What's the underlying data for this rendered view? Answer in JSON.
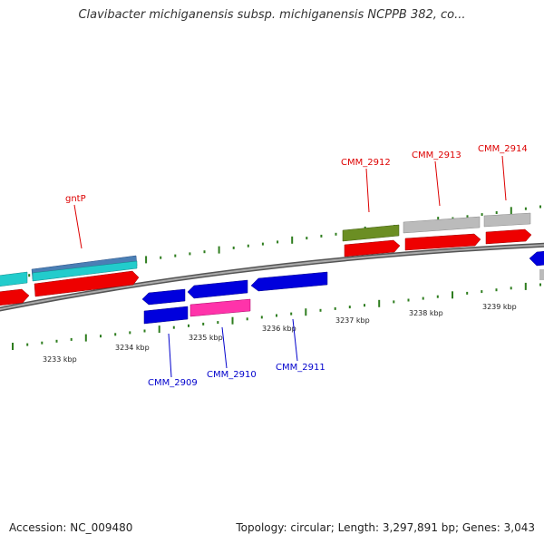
{
  "title": "Clavibacter michiganensis subsp. michiganensis NCPPB 382, co...",
  "footer": {
    "accession": "Accession: NC_009480",
    "topology": "Topology: circular; Length: 3,297,891 bp; Genes: 3,043"
  },
  "colors": {
    "backbone": "#777777",
    "tick": "#2e7d1e",
    "forward_label": "#dd0000",
    "reverse_label": "#0000cc",
    "cds_forward": "#ee0000",
    "cds_reverse": "#0000dd",
    "cyan": "#22cccc",
    "steelblue": "#4a7fb5",
    "olive": "#6b8e23",
    "gray": "#bbbbbb",
    "magenta": "#ff33aa"
  },
  "ticks": {
    "major_labels": [
      "3233 kbp",
      "3234 kbp",
      "3235 kbp",
      "3236 kbp",
      "3237 kbp",
      "3238 kbp",
      "3239 kbp"
    ]
  },
  "gene_labels": {
    "gntP": "gntP",
    "CMM_2909": "CMM_2909",
    "CMM_2910": "CMM_2910",
    "CMM_2911": "CMM_2911",
    "CMM_2912": "CMM_2912",
    "CMM_2913": "CMM_2913",
    "CMM_2914": "CMM_2914"
  }
}
